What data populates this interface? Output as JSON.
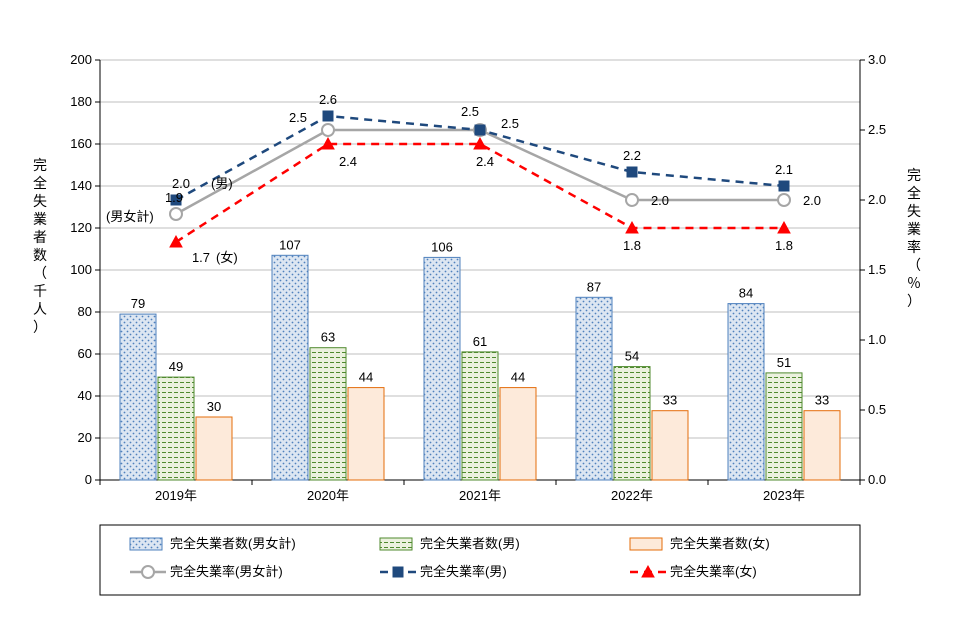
{
  "chart": {
    "type": "bar+line",
    "background_color": "#ffffff",
    "plot_border_color": "#000000",
    "grid_color": "#bfbfbf",
    "categories": [
      "2019年",
      "2020年",
      "2021年",
      "2022年",
      "2023年"
    ],
    "left_axis": {
      "label": "完全失業者数（千人）",
      "min": 0,
      "max": 200,
      "step": 20
    },
    "right_axis": {
      "label": "完全失業率（％）",
      "min": 0.0,
      "max": 3.0,
      "step": 0.5
    },
    "bars": {
      "total": {
        "legend": "完全失業者数(男女計)",
        "fill": "#dce6f2",
        "border": "#4f81bd",
        "pattern": "dots",
        "values": [
          79,
          107,
          106,
          87,
          84
        ]
      },
      "male": {
        "legend": "完全失業者数(男)",
        "fill": "#ebf1de",
        "border": "#4f8a2e",
        "pattern": "dash",
        "values": [
          49,
          63,
          61,
          54,
          51
        ]
      },
      "female": {
        "legend": "完全失業者数(女)",
        "fill": "#fdeada",
        "border": "#e46c0a",
        "pattern": "none",
        "values": [
          30,
          44,
          44,
          33,
          33
        ]
      }
    },
    "lines": {
      "total": {
        "legend": "完全失業率(男女計)",
        "color": "#a6a6a6",
        "dash": "none",
        "marker": "circle",
        "marker_fill": "#ffffff",
        "values": [
          1.9,
          2.5,
          2.5,
          2.0,
          2.0
        ],
        "labels": [
          "1.9",
          "2.5",
          "2.5",
          "2.0",
          "2.0"
        ]
      },
      "male": {
        "legend": "完全失業率(男)",
        "color": "#1f497d",
        "dash": "8,6",
        "marker": "square",
        "marker_fill": "#1f497d",
        "values": [
          2.0,
          2.6,
          2.5,
          2.2,
          2.1
        ],
        "labels": [
          "2.0",
          "2.6",
          "2.5",
          "2.2",
          "2.1"
        ]
      },
      "female": {
        "legend": "完全失業率(女)",
        "color": "#ff0000",
        "dash": "8,6",
        "marker": "triangle",
        "marker_fill": "#ff0000",
        "values": [
          1.7,
          2.4,
          2.4,
          1.8,
          1.8
        ],
        "labels": [
          "1.7",
          "2.4",
          "2.4",
          "1.8",
          "1.8"
        ]
      }
    },
    "annotations": {
      "male_tag": "(男)",
      "total_tag": "(男女計)",
      "female_tag": "(女)"
    },
    "legend_box_border": "#000000"
  }
}
